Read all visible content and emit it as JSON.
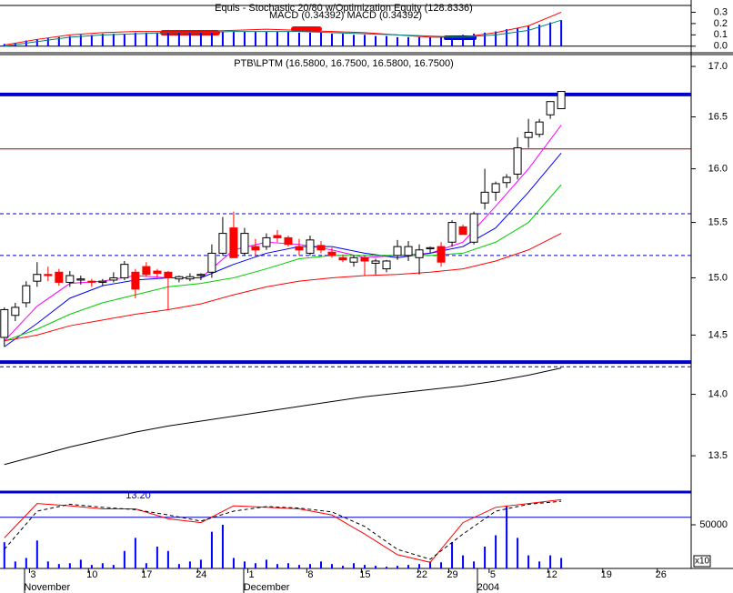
{
  "chart_data": [
    {
      "type": "macd",
      "title": "Equis - Stochastic 20/80 w/Optimization Equity (128.8336)",
      "subtitle": "MACD (0.34392) MACD (0.34392)",
      "xlim": [
        -0.4,
        62.9
      ],
      "ylim": [
        -0.05,
        0.36
      ],
      "yticks": [
        {
          "value": 0,
          "label": "0.0"
        },
        0.1,
        0.2,
        0.3
      ],
      "histogram": {
        "color": "#0000ff",
        "values": [
          0.02,
          0.03,
          0.05,
          0.06,
          0.07,
          0.08,
          0.09,
          0.1,
          0.1,
          0.11,
          0.11,
          0.11,
          0.12,
          0.12,
          0.12,
          0.12,
          0.12,
          0.12,
          0.12,
          0.12,
          0.13,
          0.13,
          0.13,
          0.13,
          0.13,
          0.13,
          0.13,
          0.12,
          0.12,
          0.12,
          0.11,
          0.11,
          0.1,
          0.1,
          0.09,
          0.09,
          0.08,
          0.08,
          0.08,
          0.08,
          0.08,
          0.09,
          0.1,
          0.11,
          0.12,
          0.13,
          0.15,
          0.16,
          0.18,
          0.19,
          0.21,
          0.23
        ]
      },
      "lines": [
        {
          "color": "#ff0000",
          "x": [
            0,
            3,
            6,
            9,
            12,
            15,
            18,
            21,
            24,
            27,
            30,
            33,
            36,
            39,
            42,
            45,
            48,
            51
          ],
          "values": [
            0.01,
            0.06,
            0.1,
            0.12,
            0.13,
            0.13,
            0.13,
            0.14,
            0.15,
            0.14,
            0.13,
            0.12,
            0.1,
            0.08,
            0.08,
            0.12,
            0.18,
            0.3
          ]
        },
        {
          "color": "#008080",
          "x": [
            0,
            3,
            6,
            9,
            12,
            15,
            18,
            21,
            24,
            27,
            30,
            33,
            36,
            39,
            42,
            45,
            48,
            51
          ],
          "values": [
            0.0,
            0.04,
            0.08,
            0.1,
            0.11,
            0.12,
            0.12,
            0.13,
            0.13,
            0.13,
            0.12,
            0.11,
            0.1,
            0.09,
            0.08,
            0.1,
            0.14,
            0.23
          ]
        }
      ]
    },
    {
      "type": "candlestick",
      "title": "PTB\\LPTM (16.5800, 16.7500, 16.5800, 16.7500)",
      "log_scale": true,
      "xlim": [
        -0.4,
        62.9
      ],
      "ylim": [
        13.22,
        17.12
      ],
      "yticks": [
        {
          "value": 17,
          "label": "17.0"
        },
        16.5,
        {
          "value": 16,
          "label": "16.0"
        },
        15.5,
        {
          "value": 15,
          "label": "15.0"
        },
        14.5,
        {
          "value": 14,
          "label": "14.0"
        },
        13.5
      ],
      "up_color": "#ffffff",
      "down_color": "#ff0000",
      "open": [
        14.48,
        14.67,
        14.78,
        14.97,
        15.03,
        15.05,
        14.96,
        14.98,
        14.97,
        14.96,
        14.98,
        15.0,
        15.05,
        15.1,
        15.06,
        15.05,
        14.99,
        14.99,
        15.02,
        15.05,
        15.22,
        15.45,
        15.22,
        15.28,
        15.28,
        15.38,
        15.36,
        15.28,
        15.22,
        15.29,
        15.23,
        15.18,
        15.14,
        15.18,
        15.13,
        15.08,
        15.2,
        15.2,
        15.18,
        15.26,
        15.28,
        15.32,
        15.46,
        15.32,
        15.68,
        15.78,
        15.87,
        15.95,
        16.3,
        16.33,
        16.52,
        16.58
      ],
      "high": [
        14.74,
        14.78,
        14.97,
        15.14,
        15.1,
        15.08,
        15.06,
        15.02,
        14.99,
        14.99,
        15.05,
        15.15,
        15.08,
        15.14,
        15.08,
        15.06,
        15.02,
        15.04,
        15.04,
        15.3,
        15.55,
        15.6,
        15.45,
        15.35,
        15.4,
        15.43,
        15.38,
        15.35,
        15.38,
        15.33,
        15.27,
        15.21,
        15.2,
        15.2,
        15.17,
        15.16,
        15.34,
        15.33,
        15.3,
        15.28,
        15.32,
        15.52,
        15.48,
        15.6,
        16.0,
        15.88,
        15.95,
        16.3,
        16.48,
        16.48,
        16.65,
        16.75
      ],
      "low": [
        14.4,
        14.62,
        14.74,
        14.92,
        14.97,
        14.93,
        14.92,
        14.94,
        14.92,
        14.93,
        14.96,
        14.98,
        14.82,
        15.01,
        15.0,
        14.72,
        14.96,
        14.97,
        14.98,
        15.0,
        15.2,
        15.18,
        15.2,
        15.2,
        15.25,
        15.32,
        15.28,
        15.2,
        15.2,
        15.22,
        15.18,
        15.14,
        15.1,
        15.02,
        15.03,
        15.05,
        15.16,
        15.15,
        15.03,
        15.22,
        15.1,
        15.28,
        15.4,
        15.3,
        15.62,
        15.7,
        15.82,
        15.9,
        16.2,
        16.3,
        16.48,
        16.58
      ],
      "close": [
        14.72,
        14.74,
        14.93,
        15.03,
        15.02,
        14.96,
        15.02,
        14.99,
        14.96,
        14.97,
        15.0,
        15.12,
        14.9,
        15.03,
        15.04,
        15.0,
        15.01,
        15.01,
        15.03,
        15.22,
        15.4,
        15.18,
        15.4,
        15.25,
        15.36,
        15.36,
        15.3,
        15.25,
        15.34,
        15.25,
        15.2,
        15.16,
        15.18,
        15.15,
        15.15,
        15.15,
        15.28,
        15.28,
        15.25,
        15.27,
        15.14,
        15.5,
        15.39,
        15.58,
        15.78,
        15.86,
        15.92,
        16.2,
        16.35,
        16.45,
        16.65,
        16.75
      ],
      "lines": [
        {
          "color": "#ff00ff",
          "x": [
            0,
            3,
            6,
            9,
            12,
            15,
            18,
            21,
            24,
            27,
            30,
            33,
            36,
            39,
            42,
            45,
            48,
            51
          ],
          "values": [
            14.45,
            14.75,
            14.95,
            14.97,
            15.02,
            15.0,
            15.0,
            15.25,
            15.32,
            15.3,
            15.25,
            15.18,
            15.2,
            15.22,
            15.32,
            15.65,
            16.0,
            16.42
          ]
        },
        {
          "color": "#0000ff",
          "x": [
            0,
            3,
            6,
            9,
            12,
            15,
            18,
            21,
            24,
            27,
            30,
            33,
            36,
            39,
            42,
            45,
            48,
            51
          ],
          "values": [
            14.4,
            14.6,
            14.82,
            14.93,
            14.98,
            15.0,
            15.0,
            15.12,
            15.22,
            15.28,
            15.28,
            15.22,
            15.18,
            15.22,
            15.28,
            15.45,
            15.78,
            16.15
          ]
        },
        {
          "color": "#00cc00",
          "x": [
            0,
            3,
            6,
            9,
            12,
            15,
            18,
            21,
            24,
            27,
            30,
            33,
            36,
            39,
            42,
            45,
            48,
            51
          ],
          "values": [
            14.45,
            14.55,
            14.68,
            14.78,
            14.85,
            14.92,
            14.95,
            15.0,
            15.08,
            15.17,
            15.2,
            15.2,
            15.2,
            15.2,
            15.22,
            15.32,
            15.5,
            15.85
          ]
        },
        {
          "color": "#ff0000",
          "x": [
            0,
            3,
            6,
            9,
            12,
            15,
            18,
            21,
            24,
            27,
            30,
            33,
            36,
            39,
            42,
            45,
            48,
            51
          ],
          "values": [
            14.45,
            14.5,
            14.58,
            14.63,
            14.68,
            14.72,
            14.77,
            14.85,
            14.92,
            14.97,
            15.0,
            15.02,
            15.03,
            15.05,
            15.08,
            15.15,
            15.25,
            15.4
          ]
        },
        {
          "color": "#000000",
          "x": [
            0,
            3,
            6,
            9,
            12,
            15,
            18,
            21,
            24,
            27,
            30,
            33,
            36,
            39,
            42,
            45,
            48,
            51
          ],
          "values": [
            13.43,
            13.5,
            13.57,
            13.63,
            13.69,
            13.74,
            13.78,
            13.82,
            13.86,
            13.9,
            13.94,
            13.98,
            14.01,
            14.04,
            14.07,
            14.11,
            14.16,
            14.22
          ]
        }
      ],
      "hlines": [
        {
          "value": 16.72,
          "color": "#0000cc",
          "width": 4,
          "dashed": false
        },
        {
          "value": 16.19,
          "color": "#990000",
          "width": 1,
          "dashed": false
        },
        {
          "value": 15.58,
          "color": "#0000cc",
          "width": 1,
          "dashed": true
        },
        {
          "value": 15.2,
          "color": "#0000cc",
          "width": 1,
          "dashed": true
        },
        {
          "value": 14.27,
          "color": "#0000cc",
          "width": 4,
          "dashed": false
        },
        {
          "value": 14.23,
          "color": "#0000cc",
          "width": 1,
          "dashed": true
        }
      ]
    },
    {
      "type": "volume",
      "annotation": "13.20",
      "scale_label": "x10",
      "xlim": [
        -0.4,
        62.9
      ],
      "ylim": [
        0,
        87500
      ],
      "yticks": [
        50000
      ],
      "color": "#0000ff",
      "values": [
        30000,
        8000,
        12000,
        32000,
        8000,
        5000,
        6000,
        10000,
        4000,
        6000,
        4000,
        20000,
        35000,
        6000,
        25000,
        20000,
        5000,
        8000,
        10000,
        42000,
        50000,
        12000,
        8000,
        6000,
        10000,
        5000,
        6000,
        4000,
        5000,
        8000,
        5000,
        3000,
        6000,
        4000,
        3000,
        2000,
        3000,
        4000,
        5000,
        8000,
        7000,
        30000,
        15000,
        8000,
        25000,
        38000,
        72000,
        35000,
        15000,
        8000,
        15000,
        12000
      ],
      "y2lim": [
        0,
        100
      ],
      "y2_level": 67,
      "stochastic": [
        {
          "color": "#ff0000",
          "dashed": false,
          "x": [
            0,
            3,
            6,
            9,
            12,
            15,
            18,
            21,
            24,
            27,
            30,
            33,
            36,
            39,
            42,
            45,
            48,
            51
          ],
          "values": [
            40,
            85,
            82,
            78,
            78,
            65,
            60,
            82,
            80,
            78,
            70,
            45,
            18,
            8,
            60,
            80,
            85,
            90
          ]
        },
        {
          "color": "#000000",
          "dashed": true,
          "x": [
            0,
            3,
            6,
            9,
            12,
            15,
            18,
            21,
            24,
            27,
            30,
            33,
            36,
            39,
            42,
            45,
            48,
            51
          ],
          "values": [
            25,
            75,
            84,
            80,
            77,
            70,
            62,
            75,
            81,
            79,
            74,
            55,
            25,
            12,
            45,
            75,
            84,
            88
          ]
        }
      ],
      "xticks": [
        {
          "value": 2.3,
          "label": "3"
        },
        {
          "value": 7.7,
          "label": "10"
        },
        {
          "value": 12.7,
          "label": "17"
        },
        {
          "value": 17.7,
          "label": "24"
        },
        {
          "value": 22.3,
          "label": "1"
        },
        {
          "value": 27.7,
          "label": "8"
        },
        {
          "value": 32.7,
          "label": "15"
        },
        {
          "value": 37.9,
          "label": "22"
        },
        {
          "value": 40.7,
          "label": "29"
        },
        {
          "value": 44.4,
          "label": "5"
        },
        {
          "value": 49.8,
          "label": "12"
        },
        {
          "value": 54.8,
          "label": "19"
        },
        {
          "value": 59.8,
          "label": "26"
        }
      ],
      "month_ticks": [
        {
          "value": 1.8,
          "label": "November"
        },
        {
          "value": 21.9,
          "label": "December"
        },
        {
          "value": 43.3,
          "label": "2004"
        }
      ]
    }
  ]
}
